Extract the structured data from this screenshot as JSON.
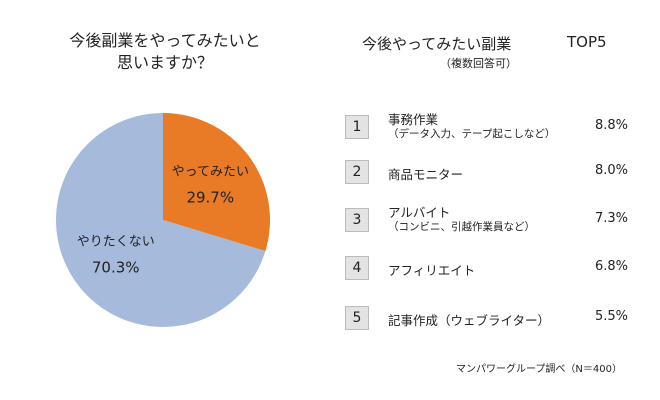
{
  "chart_data": {
    "type": "pie",
    "title": "今後副業をやってみたいと\n思いますか？",
    "categories": [
      "やってみたい",
      "やりたくない"
    ],
    "values": [
      29.7,
      70.3
    ],
    "value_labels": [
      "29.7%",
      "70.3%"
    ],
    "colors": [
      "#e97b26",
      "#a6bbdc"
    ]
  },
  "ranking": {
    "title": "今後やってみたい副業",
    "badge": "TOP5",
    "subtitle": "（複数回答可）",
    "items": [
      {
        "rank": 1,
        "label": "事務作業",
        "sublabel": "（データ入力、テープ起こしなど）",
        "value": "8.8%"
      },
      {
        "rank": 2,
        "label": "商品モニター",
        "value": "8.0%"
      },
      {
        "rank": 3,
        "label": "アルバイト",
        "sublabel": "（コンビニ、引越作業員など）",
        "value": "7.3%"
      },
      {
        "rank": 4,
        "label": "アフィリエイト",
        "value": "6.8%"
      },
      {
        "rank": 5,
        "label": "記事作成（ウェブライター）",
        "value": "5.5%"
      }
    ]
  },
  "source": "マンパワーグループ調べ（N＝400）"
}
